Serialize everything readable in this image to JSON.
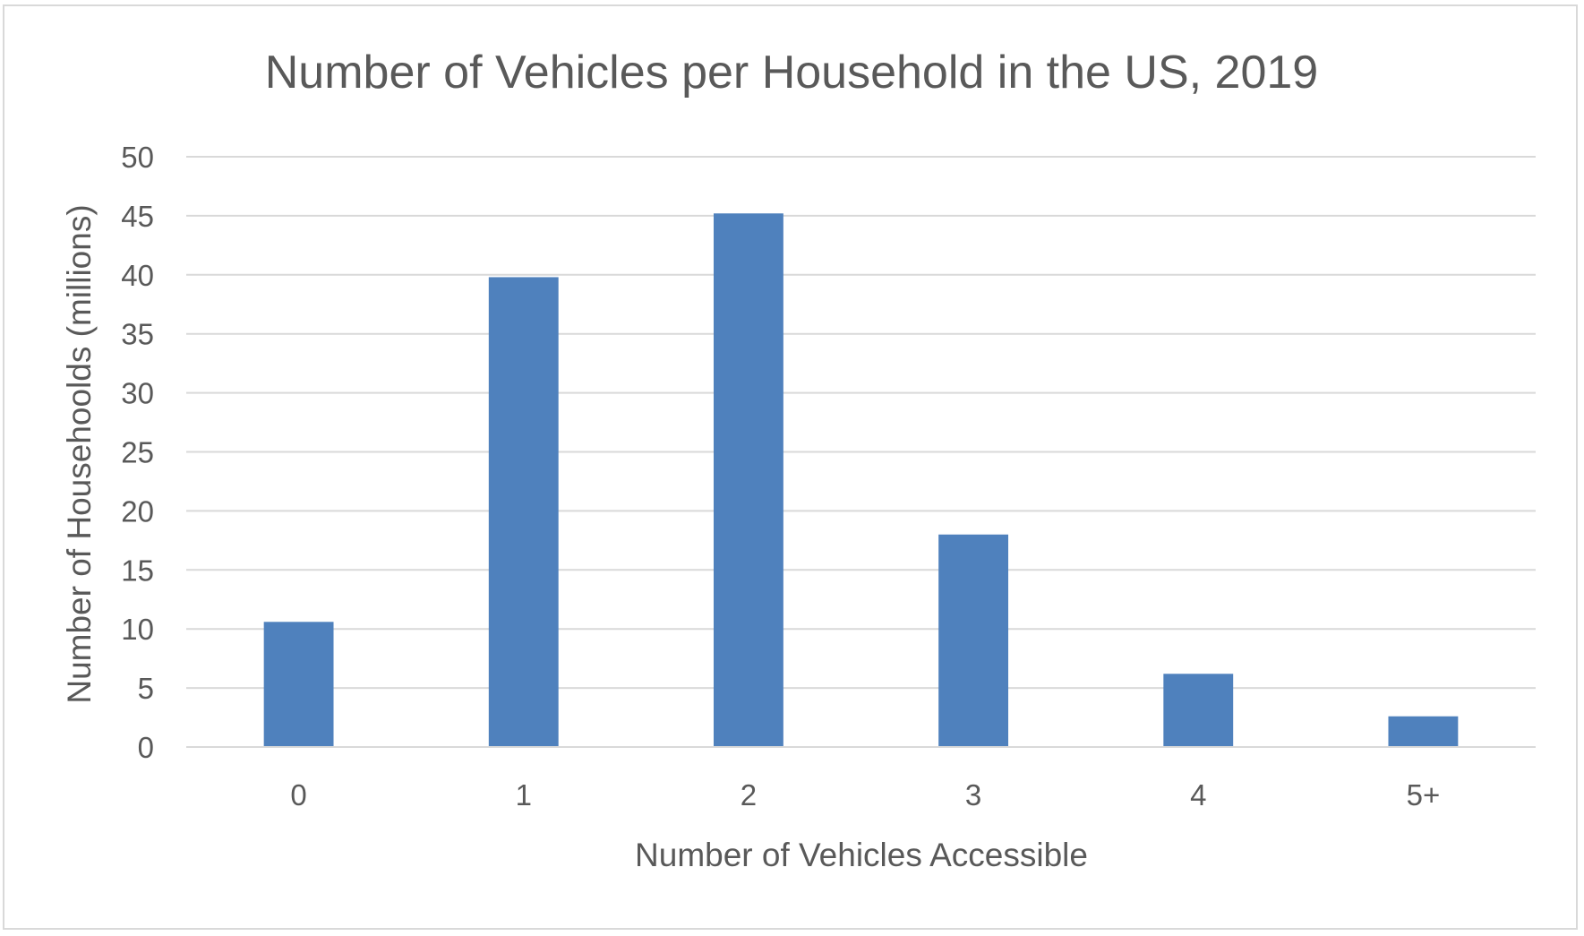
{
  "chart_data": {
    "type": "bar",
    "title": "Number of Vehicles per Household in the US, 2019",
    "xlabel": "Number of Vehicles Accessible",
    "ylabel": "Number of Househoolds (millions)",
    "categories": [
      "0",
      "1",
      "2",
      "3",
      "4",
      "5+"
    ],
    "values": [
      10.6,
      39.8,
      45.2,
      18.0,
      6.2,
      2.6
    ],
    "ylim": [
      0,
      50
    ],
    "yticks": [
      "0",
      "5",
      "10",
      "15",
      "20",
      "25",
      "30",
      "35",
      "40",
      "45",
      "50"
    ],
    "grid": true,
    "legend": "none",
    "bar_color": "#4f81bd"
  }
}
